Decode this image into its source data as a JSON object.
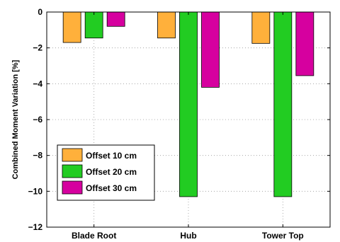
{
  "chart_data": {
    "type": "bar",
    "title": "",
    "xlabel": "",
    "ylabel": "Combined Moment Variation [%]",
    "ylim": [
      -12,
      0
    ],
    "yticks": [
      0,
      -2,
      -4,
      -6,
      -8,
      -10,
      -12
    ],
    "categories": [
      "Blade Root",
      "Hub",
      "Tower Top"
    ],
    "grid": true,
    "legend_position": "lower-left",
    "series": [
      {
        "name": "Offset 10 cm",
        "color": "#FFB03B",
        "values": [
          -1.7,
          -1.45,
          -1.75
        ]
      },
      {
        "name": "Offset 20 cm",
        "color": "#22CC22",
        "values": [
          -1.45,
          -10.3,
          -10.3
        ]
      },
      {
        "name": "Offset 30 cm",
        "color": "#D6009F",
        "values": [
          -0.8,
          -4.2,
          -3.55
        ]
      }
    ]
  }
}
